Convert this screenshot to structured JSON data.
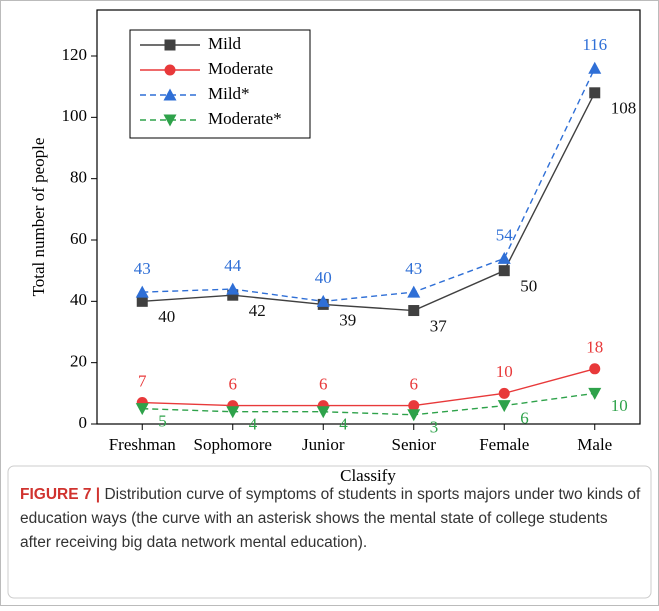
{
  "chart_data": {
    "type": "line",
    "caption_label": "FIGURE 7 |",
    "caption": "Distribution curve of symptoms of students in sports majors under two kinds of education ways (the curve with an asterisk shows the mental state of college students after receiving big data network mental education).",
    "xlabel": "Classify",
    "ylabel": "Total number of people",
    "categories": [
      "Freshman",
      "Sophomore",
      "Junior",
      "Senior",
      "Female",
      "Male"
    ],
    "series": [
      {
        "name": "Mild",
        "color": "#404040",
        "marker": "square",
        "dashed": false,
        "values": [
          40,
          42,
          39,
          37,
          50,
          108
        ]
      },
      {
        "name": "Moderate",
        "color": "#e8393a",
        "marker": "circle",
        "dashed": false,
        "values": [
          7,
          6,
          6,
          6,
          10,
          18
        ]
      },
      {
        "name": "Mild*",
        "color": "#2f6fd6",
        "marker": "triangle-up",
        "dashed": true,
        "values": [
          43,
          44,
          40,
          43,
          54,
          116
        ]
      },
      {
        "name": "Moderate*",
        "color": "#2ea24a",
        "marker": "triangle-down",
        "dashed": true,
        "values": [
          5,
          4,
          4,
          3,
          6,
          10
        ]
      }
    ],
    "ylim": [
      0,
      135
    ],
    "yticks": [
      0,
      20,
      40,
      60,
      80,
      100,
      120
    ],
    "legend": "upper-left"
  }
}
